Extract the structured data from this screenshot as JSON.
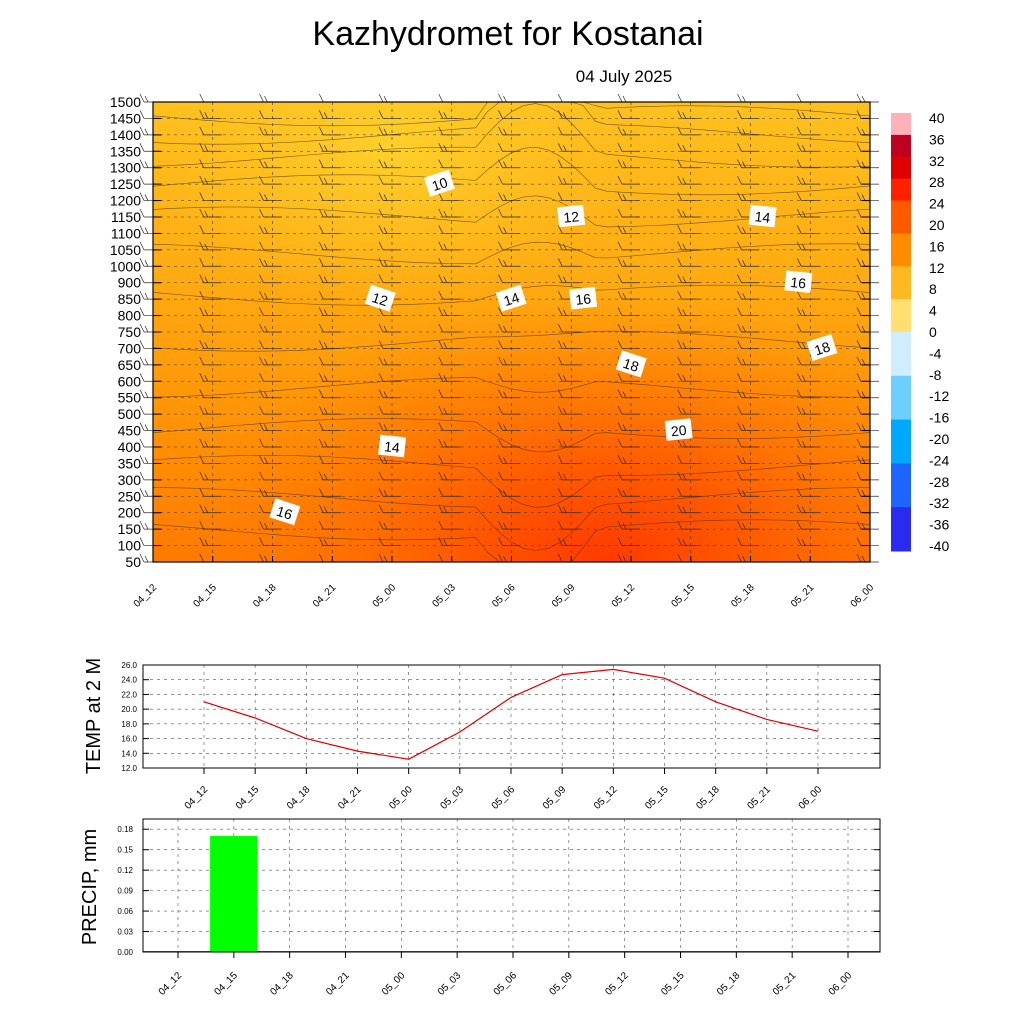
{
  "header": {
    "title": "Kazhydromet  for Kostanai",
    "date": "04 July 2025"
  },
  "colorbar": {
    "labels": [
      "40",
      "36",
      "32",
      "28",
      "24",
      "20",
      "16",
      "12",
      "8",
      "4",
      "0",
      "-4",
      "-8",
      "-12",
      "-16",
      "-20",
      "-24",
      "-28",
      "-32",
      "-36",
      "-40"
    ]
  },
  "chart_data": [
    {
      "type": "heatmap",
      "title": "Kazhydromet  for Kostanai",
      "subtitle": "04 July 2025",
      "x": [
        "04_12",
        "04_15",
        "04_18",
        "04_21",
        "05_00",
        "05_03",
        "05_06",
        "05_09",
        "05_12",
        "05_15",
        "05_18",
        "05_21",
        "06_00"
      ],
      "y_ticks": [
        "1500",
        "1450",
        "1400",
        "1350",
        "1300",
        "1250",
        "1200",
        "1150",
        "1100",
        "1050",
        "1000",
        "900",
        "850",
        "800",
        "750",
        "700",
        "650",
        "600",
        "550",
        "500",
        "450",
        "400",
        "350",
        "300",
        "250",
        "200",
        "150",
        "100",
        "50"
      ],
      "colorbar_range": [
        -40,
        40
      ],
      "contour_labels": [
        {
          "text": "10",
          "x": "05_03",
          "y": "1250"
        },
        {
          "text": "12",
          "x": "05_09",
          "y": "1150"
        },
        {
          "text": "14",
          "x": "05_18",
          "y": "1150"
        },
        {
          "text": "12",
          "x": "05_00",
          "y": "850"
        },
        {
          "text": "14",
          "x": "05_06",
          "y": "850"
        },
        {
          "text": "16",
          "x": "05_09",
          "y": "850"
        },
        {
          "text": "16",
          "x": "05_21",
          "y": "900"
        },
        {
          "text": "18",
          "x": "05_12",
          "y": "650"
        },
        {
          "text": "18",
          "x": "05_21",
          "y": "700"
        },
        {
          "text": "20",
          "x": "05_15",
          "y": "450"
        },
        {
          "text": "14",
          "x": "05_00",
          "y": "400"
        },
        {
          "text": "16",
          "x": "04_18",
          "y": "200"
        }
      ],
      "grid": true
    },
    {
      "type": "line",
      "ylabel": "TEMP at 2 M",
      "x": [
        "04_12",
        "04_15",
        "04_18",
        "04_21",
        "05_00",
        "05_03",
        "05_06",
        "05_09",
        "05_12",
        "05_15",
        "05_18",
        "05_21",
        "06_00"
      ],
      "y_ticks": [
        "26.0",
        "24.0",
        "22.0",
        "20.0",
        "18.0",
        "16.0",
        "14.0",
        "12.0"
      ],
      "ylim": [
        12,
        26
      ],
      "series": [
        {
          "values": [
            21.0,
            18.8,
            16.0,
            14.3,
            13.2,
            16.9,
            21.6,
            24.7,
            25.4,
            24.2,
            21.0,
            18.6,
            17.0
          ],
          "color": "#e00000"
        }
      ],
      "grid": true
    },
    {
      "type": "bar",
      "ylabel": "PRECIP, mm",
      "categories": [
        "04_12",
        "04_15",
        "04_18",
        "04_21",
        "05_00",
        "05_03",
        "05_06",
        "05_09",
        "05_12",
        "05_15",
        "05_18",
        "05_21",
        "06_00"
      ],
      "y_ticks": [
        "0.18",
        "0.15",
        "0.12",
        "0.09",
        "0.06",
        "0.03",
        "0.00"
      ],
      "ylim": [
        0,
        0.195
      ],
      "values": [
        0,
        0.17,
        0,
        0,
        0,
        0,
        0,
        0,
        0,
        0,
        0,
        0,
        0
      ],
      "color": "#00ff00",
      "grid": true
    }
  ]
}
